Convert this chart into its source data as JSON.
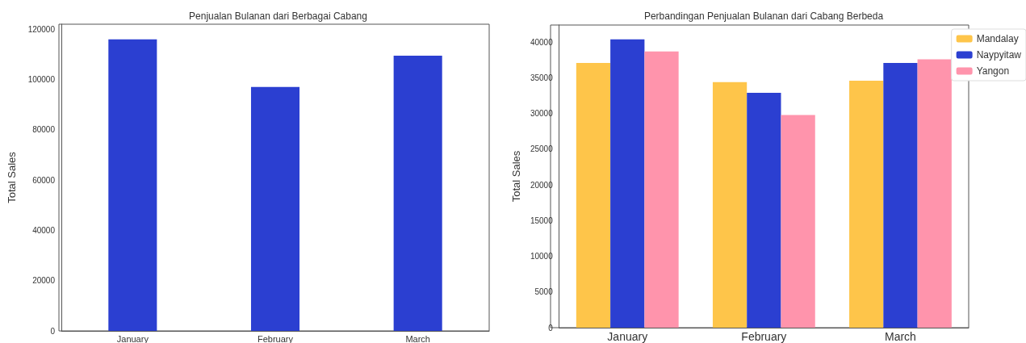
{
  "chart_data": [
    {
      "type": "bar",
      "title": "Penjualan Bulanan dari Berbagai Cabang",
      "ylabel": "Total Sales",
      "categories": [
        "January",
        "February",
        "March"
      ],
      "values": [
        116000,
        97000,
        109500
      ],
      "color": "#2b3fd1",
      "ylim": [
        0,
        122000
      ],
      "yticks": [
        0,
        20000,
        40000,
        60000,
        80000,
        100000,
        120000
      ],
      "grid": false,
      "legend": false
    },
    {
      "type": "bar",
      "title": "Perbandingan Penjualan Bulanan dari Cabang Berbeda",
      "ylabel": "Total Sales",
      "categories": [
        "January",
        "February",
        "March"
      ],
      "series": [
        {
          "name": "Mandalay",
          "color": "#fec54a",
          "values": [
            37100,
            34400,
            34600
          ]
        },
        {
          "name": "Naypyitaw",
          "color": "#2b3fd1",
          "values": [
            40400,
            32900,
            37100
          ]
        },
        {
          "name": "Yangon",
          "color": "#ff94ac",
          "values": [
            38700,
            29800,
            37600
          ]
        }
      ],
      "ylim": [
        0,
        42400
      ],
      "yticks": [
        0,
        5000,
        10000,
        15000,
        20000,
        25000,
        30000,
        35000,
        40000
      ],
      "grid": false,
      "legend": "top right"
    }
  ]
}
